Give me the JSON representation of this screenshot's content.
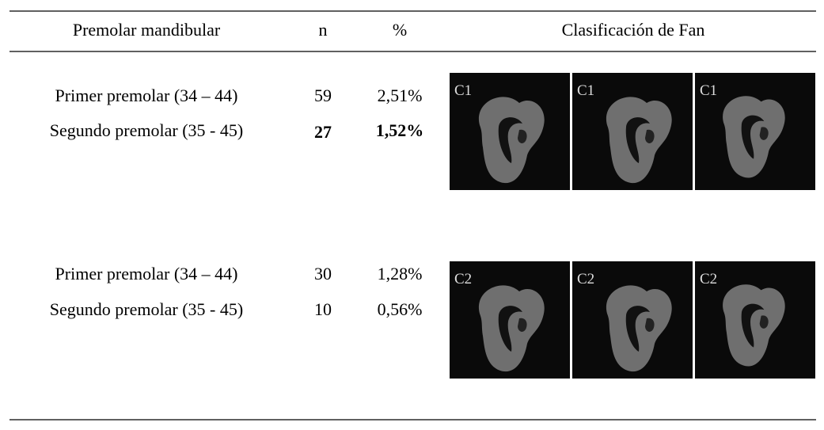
{
  "table": {
    "header": [
      "Premolar mandibular",
      "n",
      "%",
      "Clasificación de Fan"
    ],
    "groups": [
      {
        "rows": [
          [
            "Primer premolar  (34 – 44)",
            59,
            "2,51%"
          ],
          [
            "Segundo premolar (35 - 45)",
            27,
            "1,52%"
          ]
        ],
        "images": [
          "C1",
          "C1",
          "C1"
        ]
      },
      {
        "rows": [
          [
            "Primer premolar  (34 – 44)",
            30,
            "1,28%"
          ],
          [
            "Segundo premolar (35 - 45)",
            10,
            "0,56%"
          ]
        ],
        "images": [
          "C2",
          "C2",
          "C2"
        ]
      }
    ]
  }
}
